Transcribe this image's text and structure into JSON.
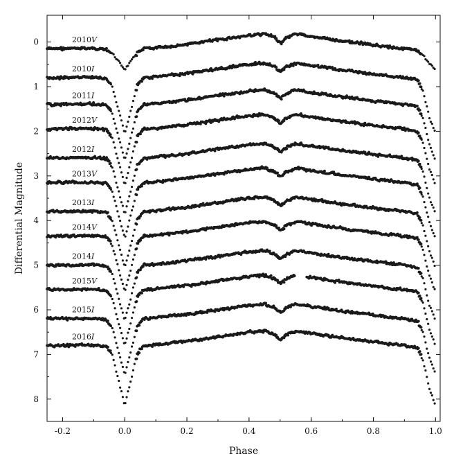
{
  "chart_data": {
    "type": "scatter",
    "title": "",
    "xlabel": "Phase",
    "ylabel": "Differential Magnitude",
    "xlim": [
      -0.25,
      1.015
    ],
    "ylim": [
      8.5,
      -0.6
    ],
    "y_inverted": true,
    "xticks": [
      -0.2,
      0.0,
      0.2,
      0.4,
      0.6,
      0.8,
      1.0
    ],
    "xtick_labels": [
      "-0.2",
      "0.0",
      "0.2",
      "0.4",
      "0.6",
      "0.8",
      "1.0"
    ],
    "yticks": [
      0,
      1,
      2,
      3,
      4,
      5,
      6,
      7,
      8
    ],
    "ytick_labels": [
      "0",
      "1",
      "2",
      "3",
      "4",
      "5",
      "6",
      "7",
      "8"
    ],
    "grid": false,
    "marker_color": "#1a1a1a",
    "light_curve_shape": {
      "x": [
        -0.25,
        -0.1,
        -0.06,
        -0.04,
        -0.02,
        0.0,
        0.02,
        0.04,
        0.06,
        0.1,
        0.2,
        0.3,
        0.4,
        0.45,
        0.48,
        0.5,
        0.52,
        0.55,
        0.6,
        0.7,
        0.8,
        0.9,
        0.94,
        0.96,
        0.98,
        1.0
      ],
      "relative_magnitude": [
        0.05,
        0.04,
        0.07,
        0.25,
        0.75,
        1.25,
        0.75,
        0.2,
        0.05,
        0.03,
        -0.05,
        -0.15,
        -0.25,
        -0.28,
        -0.2,
        -0.08,
        -0.2,
        -0.28,
        -0.22,
        -0.12,
        -0.03,
        0.05,
        0.1,
        0.35,
        0.9,
        1.25
      ]
    },
    "series": [
      {
        "name": "2010V",
        "label_year": "2010",
        "label_band": "V",
        "baseline": 0.1,
        "eclipse_depth": 0.45,
        "gap": null
      },
      {
        "name": "2010I",
        "label_year": "2010",
        "label_band": "I",
        "baseline": 0.75,
        "eclipse_depth": 1.3,
        "gap": null
      },
      {
        "name": "2011I",
        "label_year": "2011",
        "label_band": "I",
        "baseline": 1.35,
        "eclipse_depth": 1.3,
        "gap": null
      },
      {
        "name": "2012V",
        "label_year": "2012",
        "label_band": "V",
        "baseline": 1.9,
        "eclipse_depth": 1.3,
        "gap": null
      },
      {
        "name": "2012I",
        "label_year": "2012",
        "label_band": "I",
        "baseline": 2.55,
        "eclipse_depth": 1.3,
        "gap": null
      },
      {
        "name": "2013V",
        "label_year": "2013",
        "label_band": "V",
        "baseline": 3.1,
        "eclipse_depth": 1.3,
        "gap": null
      },
      {
        "name": "2013I",
        "label_year": "2013",
        "label_band": "I",
        "baseline": 3.75,
        "eclipse_depth": 1.3,
        "gap": null
      },
      {
        "name": "2014V",
        "label_year": "2014",
        "label_band": "V",
        "baseline": 4.3,
        "eclipse_depth": 1.3,
        "gap": null
      },
      {
        "name": "2014I",
        "label_year": "2014",
        "label_band": "I",
        "baseline": 4.95,
        "eclipse_depth": 1.3,
        "gap": null
      },
      {
        "name": "2015V",
        "label_year": "2015",
        "label_band": "V",
        "baseline": 5.5,
        "eclipse_depth": 1.3,
        "gap": [
          0.545,
          0.585
        ]
      },
      {
        "name": "2015I",
        "label_year": "2015",
        "label_band": "I",
        "baseline": 6.15,
        "eclipse_depth": 1.3,
        "gap": null
      },
      {
        "name": "2016I",
        "label_year": "2016",
        "label_band": "I",
        "baseline": 6.75,
        "eclipse_depth": 1.4,
        "gap": null
      }
    ]
  }
}
